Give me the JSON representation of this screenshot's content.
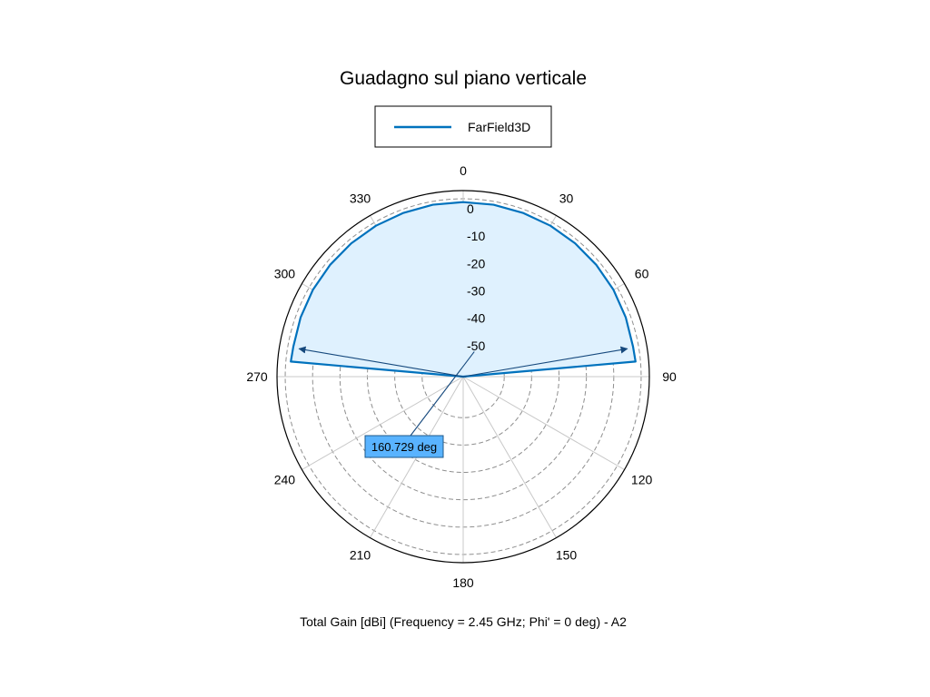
{
  "chart_data": {
    "type": "polar",
    "title": "Guadagno sul piano verticale",
    "caption": "Total Gain [dBi] (Frequency = 2.45 GHz; Phi' = 0 deg) - A2",
    "angle_zero_location": "top",
    "angle_direction": "clockwise",
    "angle_ticks": [
      0,
      30,
      60,
      90,
      120,
      150,
      180,
      210,
      240,
      270,
      300,
      330
    ],
    "angle_tick_labels": [
      "0",
      "30",
      "60",
      "90",
      "120",
      "150",
      "180",
      "210",
      "240",
      "270",
      "300",
      "330"
    ],
    "radial_range": [
      -65,
      3
    ],
    "radial_ticks": [
      0,
      -10,
      -20,
      -30,
      -40,
      -50
    ],
    "radial_tick_labels": [
      "0",
      "-10",
      "-20",
      "-30",
      "-40",
      "-50"
    ],
    "grid": true,
    "legend": {
      "placement": "top",
      "entries": [
        "FarField3D"
      ]
    },
    "series": [
      {
        "name": "FarField3D",
        "color": "#0072bd",
        "fill_color": "#dff1fe",
        "theta_deg": [
          -90,
          -85,
          -80,
          -70,
          -60,
          -50,
          -40,
          -30,
          -20,
          -10,
          0,
          10,
          20,
          30,
          40,
          50,
          60,
          70,
          80,
          85,
          90
        ],
        "gain_dbi": [
          -65,
          -1.8,
          -2.0,
          -1.8,
          -1.6,
          -1.5,
          -1.4,
          -1.3,
          -1.3,
          -1.2,
          -1.2,
          -1.2,
          -1.3,
          -1.3,
          -1.4,
          -1.5,
          -1.6,
          -1.8,
          -2.0,
          -1.8,
          -65
        ]
      }
    ],
    "beamwidth": {
      "label": "160.729 deg",
      "arrow_angles_deg": [
        -80.36,
        80.36
      ],
      "arrow_gain_dbi": -4.2
    }
  }
}
